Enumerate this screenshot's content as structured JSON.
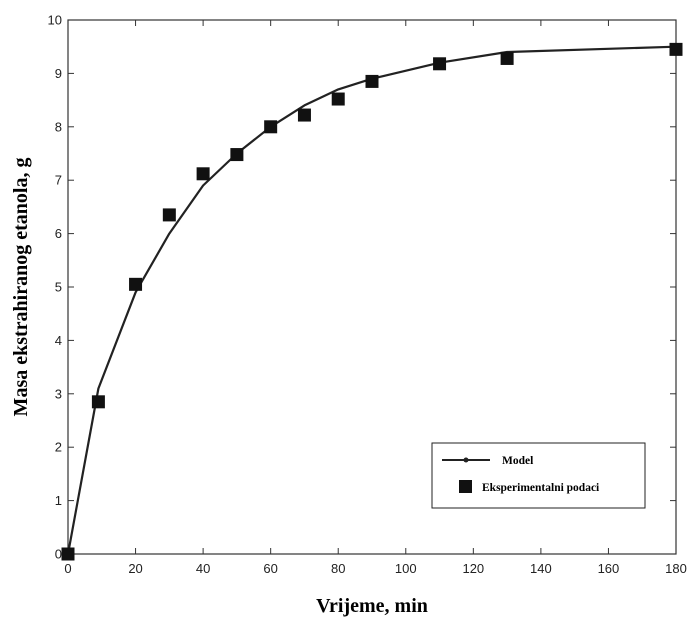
{
  "chart_data": {
    "type": "line",
    "xlabel": "Vrijeme, min",
    "ylabel": "Masa ekstrahiranog etanola, g",
    "xlim": [
      0,
      180
    ],
    "ylim": [
      0,
      10
    ],
    "x_ticks": [
      0,
      20,
      40,
      60,
      80,
      100,
      120,
      140,
      160,
      180
    ],
    "y_ticks": [
      0,
      1,
      2,
      3,
      4,
      5,
      6,
      7,
      8,
      9,
      10
    ],
    "grid": false,
    "legend_position": "lower-right",
    "series": [
      {
        "name": "Model",
        "style": "line",
        "color": "#222222",
        "x": [
          0,
          9,
          20,
          30,
          40,
          50,
          60,
          70,
          80,
          90,
          110,
          130,
          180
        ],
        "y": [
          0,
          3.1,
          4.9,
          6.0,
          6.9,
          7.5,
          8.0,
          8.4,
          8.7,
          8.9,
          9.2,
          9.4,
          9.5
        ]
      },
      {
        "name": "Eksperimentalni podaci",
        "style": "square-markers",
        "color": "#111111",
        "x": [
          0,
          9,
          20,
          30,
          40,
          50,
          60,
          70,
          80,
          90,
          110,
          130,
          180
        ],
        "y": [
          0,
          2.85,
          5.05,
          6.35,
          7.12,
          7.48,
          8.0,
          8.22,
          8.52,
          8.85,
          9.18,
          9.28,
          9.45
        ]
      }
    ]
  }
}
